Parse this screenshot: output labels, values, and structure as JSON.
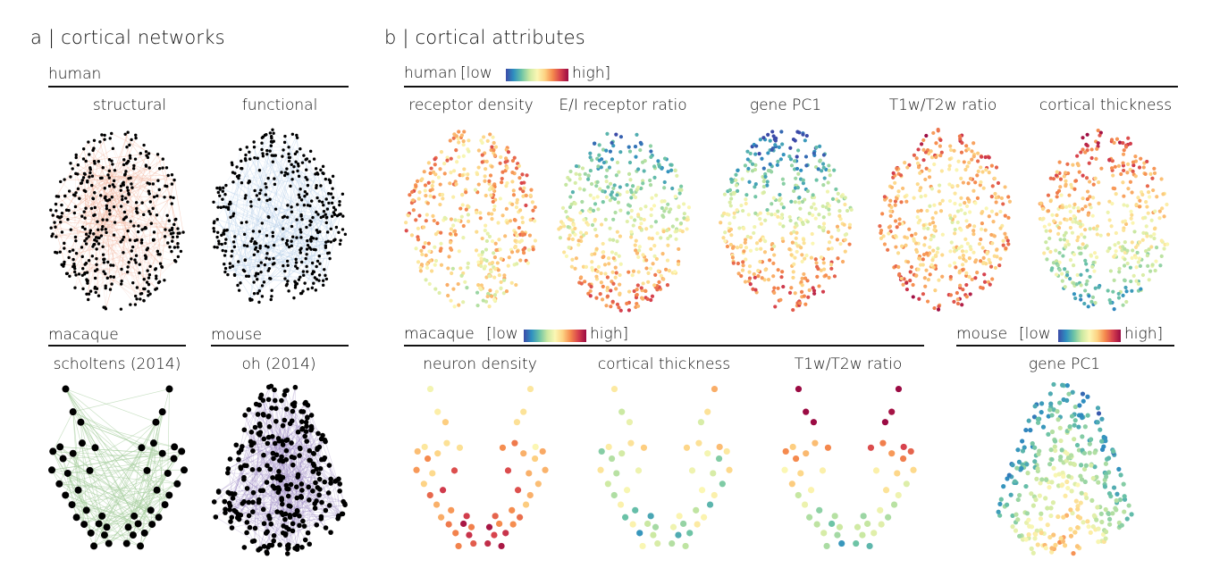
{
  "panel_a": {
    "title": "a | cortical networks",
    "human_label": "human",
    "structural_label": "structural",
    "functional_label": "functional",
    "macaque_label": "macaque",
    "mouse_label": "mouse",
    "macaque_network_label": "scholtens (2014)",
    "mouse_network_label": "oh (2014)"
  },
  "panel_b": {
    "title": "b | cortical attributes",
    "human": {
      "label": "human",
      "scale_low": "[low",
      "scale_high": "high]",
      "maps": [
        "receptor density",
        "E/I receptor ratio",
        "gene PC1",
        "T1w/T2w ratio",
        "cortical thickness"
      ]
    },
    "macaque": {
      "label": "macaque",
      "scale_low": "[low",
      "scale_high": "high]",
      "maps": [
        "neuron density",
        "cortical thickness",
        "T1w/T2w ratio"
      ]
    },
    "mouse": {
      "label": "mouse",
      "scale_low": "[low",
      "scale_high": "high]",
      "maps": [
        "gene PC1"
      ]
    }
  },
  "colors": {
    "structural_edges": "#f2b8a2",
    "functional_edges": "#b9d1ea",
    "macaque_edges": "#a8cfa0",
    "mouse_edges": "#9b86c4",
    "colormap": [
      "#3b4ba8",
      "#2f8fc0",
      "#6cc3a6",
      "#c9e8a2",
      "#fbf7b4",
      "#fdd283",
      "#f5894d",
      "#d6404d",
      "#9b0b43"
    ]
  }
}
